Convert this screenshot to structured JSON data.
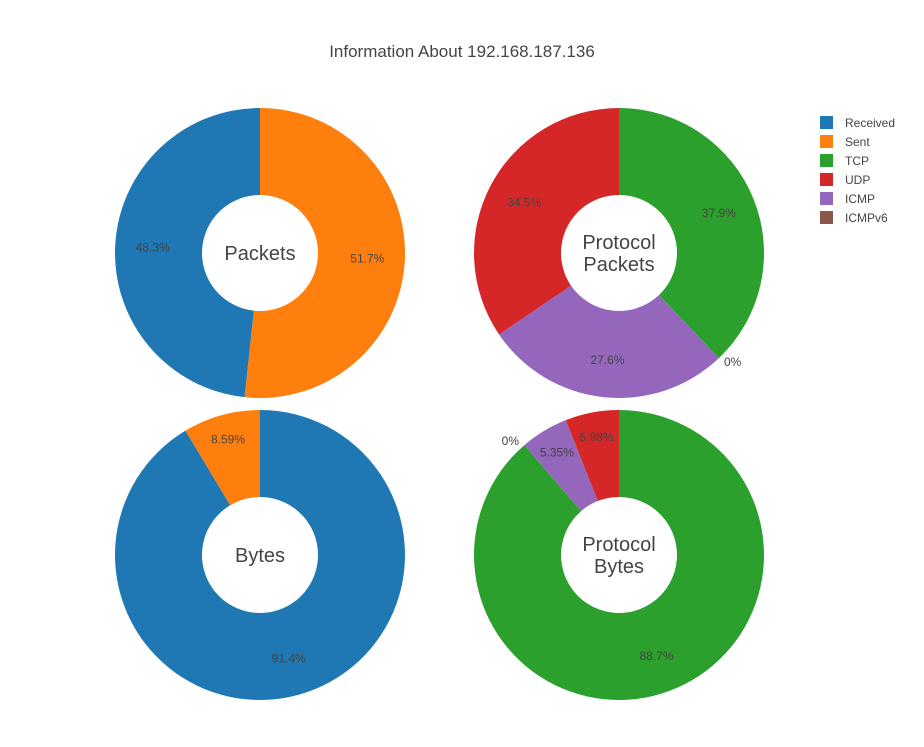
{
  "chart_data": {
    "type": "pie",
    "title": "Information About 192.168.187.136",
    "legend": {
      "placement": "top-right",
      "entries": [
        {
          "name": "Received",
          "color": "#1f77b4"
        },
        {
          "name": "Sent",
          "color": "#ff7f0e"
        },
        {
          "name": "TCP",
          "color": "#2ca02c"
        },
        {
          "name": "UDP",
          "color": "#d62728"
        },
        {
          "name": "ICMP",
          "color": "#9467bd"
        },
        {
          "name": "ICMPv6",
          "color": "#8c564b"
        }
      ]
    },
    "charts": [
      {
        "id": "packets",
        "center_label": [
          "Packets"
        ],
        "hole": 0.4,
        "slices": [
          {
            "name": "Sent",
            "value": 51.7,
            "label": "51.7%",
            "color": "#ff7f0e"
          },
          {
            "name": "Received",
            "value": 48.3,
            "label": "48.3%",
            "color": "#1f77b4"
          }
        ]
      },
      {
        "id": "protocol-packets",
        "center_label": [
          "Protocol",
          "Packets"
        ],
        "hole": 0.4,
        "slices": [
          {
            "name": "TCP",
            "value": 37.9,
            "label": "37.9%",
            "color": "#2ca02c"
          },
          {
            "name": "ICMPv6",
            "value": 0,
            "label": "0%",
            "color": "#8c564b"
          },
          {
            "name": "ICMP",
            "value": 27.6,
            "label": "27.6%",
            "color": "#9467bd"
          },
          {
            "name": "UDP",
            "value": 34.5,
            "label": "34.5%",
            "color": "#d62728"
          }
        ]
      },
      {
        "id": "bytes",
        "center_label": [
          "Bytes"
        ],
        "hole": 0.4,
        "slices": [
          {
            "name": "Received",
            "value": 91.4,
            "label": "91.4%",
            "color": "#1f77b4"
          },
          {
            "name": "Sent",
            "value": 8.59,
            "label": "8.59%",
            "color": "#ff7f0e"
          }
        ]
      },
      {
        "id": "protocol-bytes",
        "center_label": [
          "Protocol",
          "Bytes"
        ],
        "hole": 0.4,
        "slices": [
          {
            "name": "TCP",
            "value": 88.7,
            "label": "88.7%",
            "color": "#2ca02c"
          },
          {
            "name": "ICMPv6",
            "value": 0,
            "label": "0%",
            "color": "#8c564b"
          },
          {
            "name": "ICMP",
            "value": 5.35,
            "label": "5.35%",
            "color": "#9467bd"
          },
          {
            "name": "UDP",
            "value": 5.98,
            "label": "5.98%",
            "color": "#d62728"
          }
        ]
      }
    ]
  }
}
